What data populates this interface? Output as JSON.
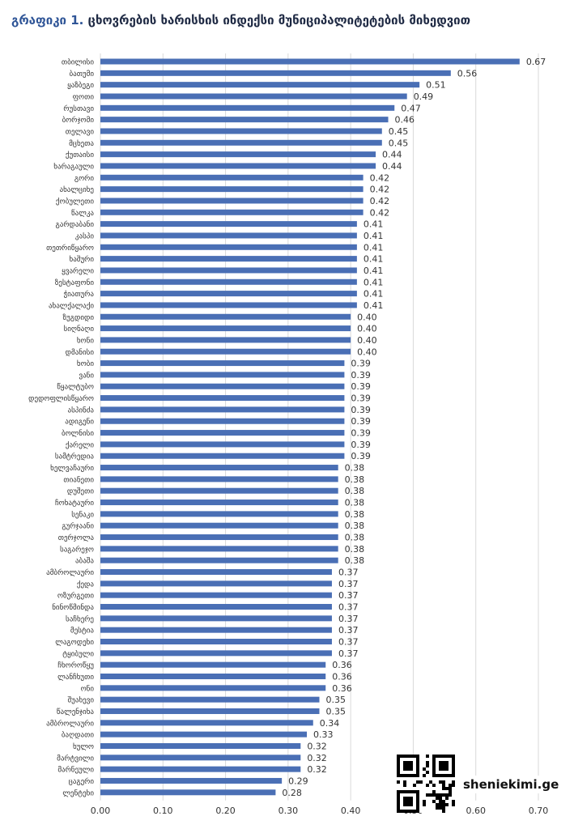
{
  "title": {
    "lead": "გრაფიკი 1.",
    "text": "ცხოვრების ხარისხის ინდექსი მუნიციპალიტეტების მიხედვით"
  },
  "watermark": {
    "site": "sheniekimi.ge"
  },
  "colors": {
    "bar": "#4a6fb5",
    "grid": "#d9d9d9",
    "text": "#333333"
  },
  "chart_data": {
    "type": "bar",
    "orientation": "horizontal",
    "xlim": [
      0,
      0.7
    ],
    "xticks": [
      "0.00",
      "0.10",
      "0.20",
      "0.30",
      "0.40",
      "0.50",
      "0.60",
      "0.70"
    ],
    "grid": true,
    "categories": [
      "თბილისი",
      "ბათუმი",
      "ყაზბეგი",
      "ფოთი",
      "რუსთავი",
      "ბორჯომი",
      "თელავი",
      "მცხეთა",
      "ქუთაისი",
      "ხარაგაული",
      "გორი",
      "ახალციხე",
      "ქობულეთი",
      "წალკა",
      "გარდაბანი",
      "კასპი",
      "თეთრიწყარო",
      "ხაშური",
      "ყვარელი",
      "ზესტაფონი",
      "ჭიათურა",
      "ახალქალაქი",
      "ზუგდიდი",
      "სიღნაღი",
      "ხონი",
      "დმანისი",
      "ხობი",
      "ვანი",
      "წყალტუბო",
      "დედოფლისწყარო",
      "ასპინძა",
      "ადიგენი",
      "ბოლნისი",
      "ქარელი",
      "სამტრედია",
      "ხელვაჩაური",
      "თიანეთი",
      "დუშეთი",
      "ჩოხატაური",
      "სენაკი",
      "გურჯაანი",
      "თერჯოლა",
      "საგარეჯო",
      "აბაშა",
      "ამბროლაური",
      "ქედა",
      "ოზურგეთი",
      "ნინოწმინდა",
      "საჩხერე",
      "მესტია",
      "ლაგოდეხი",
      "ტყიბული",
      "ჩხოროწყუ",
      "ლანჩხუთი",
      "ონი",
      "შუახევი",
      "წალენჯიხა",
      "ამბროლაური",
      "ბაღდათი",
      "ხულო",
      "მარტვილი",
      "მარნეული",
      "ცაგერი",
      "ლენტეხი"
    ],
    "values": [
      0.67,
      0.56,
      0.51,
      0.49,
      0.47,
      0.46,
      0.45,
      0.45,
      0.44,
      0.44,
      0.42,
      0.42,
      0.42,
      0.42,
      0.41,
      0.41,
      0.41,
      0.41,
      0.41,
      0.41,
      0.41,
      0.41,
      0.4,
      0.4,
      0.4,
      0.4,
      0.39,
      0.39,
      0.39,
      0.39,
      0.39,
      0.39,
      0.39,
      0.39,
      0.39,
      0.38,
      0.38,
      0.38,
      0.38,
      0.38,
      0.38,
      0.38,
      0.38,
      0.38,
      0.37,
      0.37,
      0.37,
      0.37,
      0.37,
      0.37,
      0.37,
      0.37,
      0.36,
      0.36,
      0.36,
      0.35,
      0.35,
      0.34,
      0.33,
      0.32,
      0.32,
      0.32,
      0.29,
      0.28
    ],
    "labels": [
      "0.67",
      "0.56",
      "0.51",
      "0.49",
      "0.47",
      "0.46",
      "0.45",
      "0.45",
      "0.44",
      "0.44",
      "0.42",
      "0.42",
      "0.42",
      "0.42",
      "0.41",
      "0.41",
      "0.41",
      "0.41",
      "0.41",
      "0.41",
      "0.41",
      "0.41",
      "0.40",
      "0.40",
      "0.40",
      "0.40",
      "0.39",
      "0.39",
      "0.39",
      "0.39",
      "0.39",
      "0.39",
      "0.39",
      "0.39",
      "0.39",
      "0.38",
      "0.38",
      "0.38",
      "0.38",
      "0.38",
      "0.38",
      "0.38",
      "0.38",
      "0.38",
      "0.37",
      "0.37",
      "0.37",
      "0.37",
      "0.37",
      "0.37",
      "0.37",
      "0.37",
      "0.36",
      "0.36",
      "0.36",
      "0.35",
      "0.35",
      "0.34",
      "0.33",
      "0.32",
      "0.32",
      "0.32",
      "0.29",
      "0.28"
    ]
  }
}
